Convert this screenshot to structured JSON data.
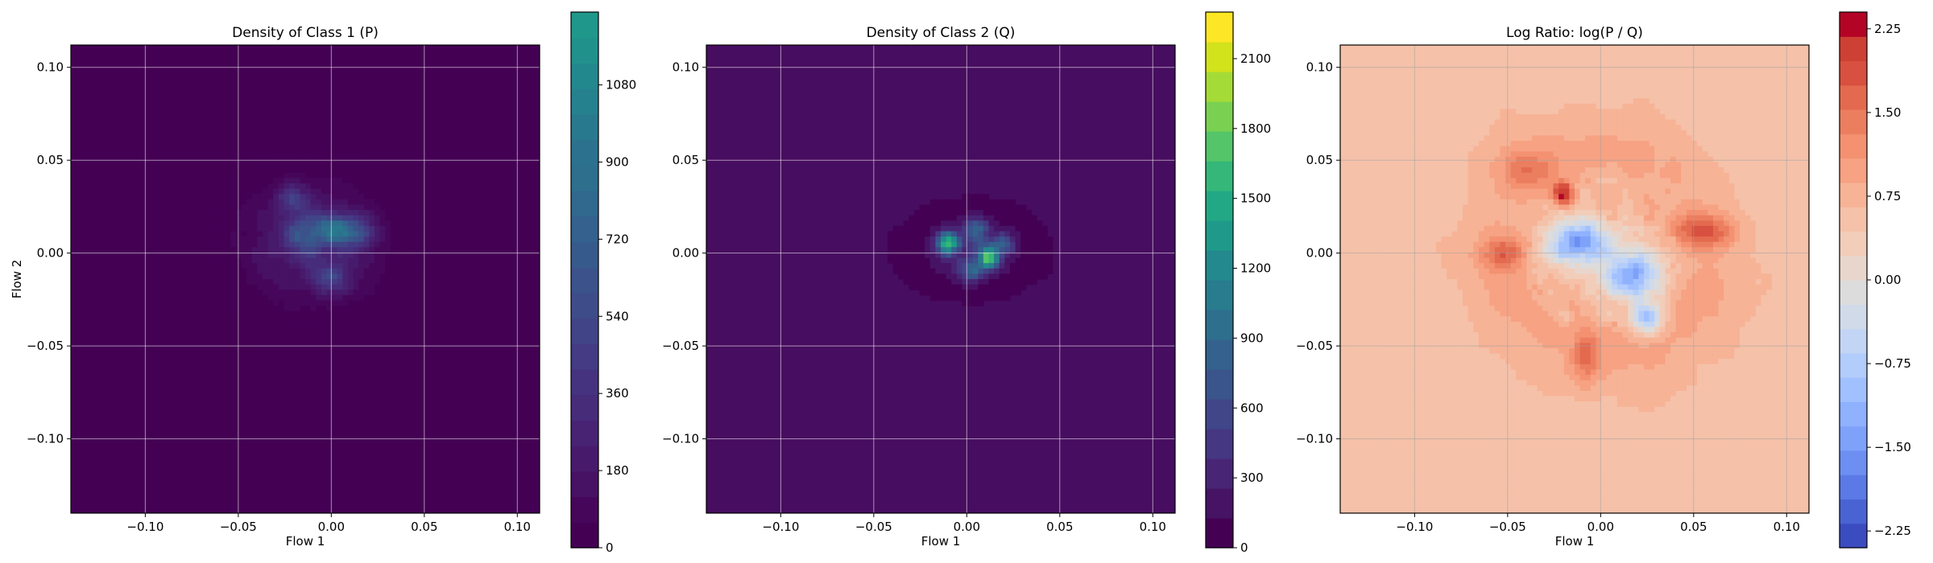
{
  "chart_data": [
    {
      "type": "heatmap",
      "title": "Density of Class 1 (P)",
      "xlabel": "Flow 1",
      "ylabel": "Flow 2",
      "xlim": [
        -0.14,
        0.112
      ],
      "ylim": [
        -0.14,
        0.112
      ],
      "xticks": [
        -0.1,
        -0.05,
        0.0,
        0.05,
        0.1
      ],
      "yticks": [
        -0.1,
        -0.05,
        0.0,
        0.05,
        0.1
      ],
      "xtick_labels": [
        "−0.10",
        "−0.05",
        "0.00",
        "0.05",
        "0.10"
      ],
      "ytick_labels": [
        "−0.10",
        "−0.05",
        "0.00",
        "0.05",
        "0.10"
      ],
      "grid": true,
      "colormap": "viridis",
      "background_color": "#440154",
      "colorbar": {
        "range": [
          0,
          1250
        ],
        "ticks": [
          0,
          180,
          360,
          540,
          720,
          900,
          1080
        ],
        "tick_labels": [
          "0",
          "180",
          "360",
          "540",
          "720",
          "900",
          "1080"
        ],
        "levels": 21,
        "colors": [
          "#440154",
          "#46075a",
          "#471164",
          "#481a6c",
          "#482374",
          "#472c7a",
          "#46337f",
          "#443b84",
          "#414487",
          "#3e4c8a",
          "#3b528b",
          "#375a8c",
          "#34618d",
          "#31688e",
          "#2e6f8e",
          "#2c728e",
          "#29798e",
          "#26818e",
          "#23888e",
          "#21918c",
          "#1f988b"
        ]
      },
      "density_blobs": [
        {
          "x": -0.01,
          "y": 0.005,
          "sx": 0.024,
          "sy": 0.02,
          "peak": 300
        },
        {
          "x": 0.0,
          "y": 0.012,
          "sx": 0.006,
          "sy": 0.005,
          "peak": 650
        },
        {
          "x": -0.02,
          "y": 0.03,
          "sx": 0.006,
          "sy": 0.005,
          "peak": 380
        },
        {
          "x": 0.012,
          "y": 0.01,
          "sx": 0.007,
          "sy": 0.006,
          "peak": 420
        },
        {
          "x": -0.015,
          "y": 0.01,
          "sx": 0.006,
          "sy": 0.006,
          "peak": 360
        },
        {
          "x": 0.0,
          "y": -0.015,
          "sx": 0.006,
          "sy": 0.005,
          "peak": 380
        }
      ]
    },
    {
      "type": "heatmap",
      "title": "Density of Class 2 (Q)",
      "xlabel": "Flow 1",
      "xlim": [
        -0.14,
        0.112
      ],
      "ylim": [
        -0.14,
        0.112
      ],
      "xticks": [
        -0.1,
        -0.05,
        0.0,
        0.05,
        0.1
      ],
      "yticks": [
        -0.1,
        -0.05,
        0.0,
        0.05,
        0.1
      ],
      "xtick_labels": [
        "−0.10",
        "−0.05",
        "0.00",
        "0.05",
        "0.10"
      ],
      "ytick_labels": [
        "−0.10",
        "−0.05",
        "0.00",
        "0.05",
        "0.10"
      ],
      "grid": true,
      "colormap": "viridis",
      "background_color": "#470d60",
      "colorbar": {
        "range": [
          0,
          2300
        ],
        "ticks": [
          0,
          300,
          600,
          900,
          1200,
          1500,
          1800,
          2100
        ],
        "tick_labels": [
          "0",
          "300",
          "600",
          "900",
          "1200",
          "1500",
          "1800",
          "2100"
        ],
        "levels": 15,
        "colors": [
          "#440154",
          "#471365",
          "#482575",
          "#453781",
          "#404688",
          "#3a548c",
          "#34618d",
          "#2e6f8e",
          "#297b8e",
          "#23898e",
          "#1f9a8a",
          "#22a884",
          "#35b779",
          "#54c568",
          "#7ad151",
          "#a5db36",
          "#d2e21b",
          "#fde725"
        ]
      },
      "density_blobs": [
        {
          "x": 0.002,
          "y": 0.002,
          "sx": 0.017,
          "sy": 0.011,
          "peak": 400
        },
        {
          "x": -0.01,
          "y": 0.005,
          "sx": 0.004,
          "sy": 0.004,
          "peak": 1500
        },
        {
          "x": 0.005,
          "y": 0.012,
          "sx": 0.004,
          "sy": 0.004,
          "peak": 1000
        },
        {
          "x": 0.012,
          "y": -0.003,
          "sx": 0.004,
          "sy": 0.004,
          "peak": 1100
        },
        {
          "x": 0.002,
          "y": -0.01,
          "sx": 0.004,
          "sy": 0.004,
          "peak": 800
        },
        {
          "x": 0.02,
          "y": 0.005,
          "sx": 0.004,
          "sy": 0.004,
          "peak": 700
        }
      ]
    },
    {
      "type": "heatmap",
      "title": "Log Ratio: log(P / Q)",
      "xlabel": "Flow 1",
      "xlim": [
        -0.14,
        0.112
      ],
      "ylim": [
        -0.14,
        0.112
      ],
      "xticks": [
        -0.1,
        -0.05,
        0.0,
        0.05,
        0.1
      ],
      "yticks": [
        -0.1,
        -0.05,
        0.0,
        0.05,
        0.1
      ],
      "xtick_labels": [
        "−0.10",
        "−0.05",
        "0.00",
        "0.05",
        "0.10"
      ],
      "ytick_labels": [
        "−0.10",
        "−0.05",
        "0.00",
        "0.05",
        "0.10"
      ],
      "grid": true,
      "colormap": "coolwarm",
      "background_color": "#efcbb5",
      "colorbar": {
        "range": [
          -2.4,
          2.4
        ],
        "ticks": [
          -2.25,
          -1.5,
          -0.75,
          0.0,
          0.75,
          1.5,
          2.25
        ],
        "tick_labels": [
          "−2.25",
          "−1.50",
          "−0.75",
          "0.00",
          "0.75",
          "1.50",
          "2.25"
        ],
        "levels": 21,
        "colors": [
          "#3b4cc0",
          "#4a63d3",
          "#5b7ae5",
          "#6c8ff1",
          "#7ea1fa",
          "#8fb1fe",
          "#a1c0ff",
          "#b2ccfb",
          "#c3d5f4",
          "#d1dae9",
          "#dddcdc",
          "#e8d6cc",
          "#f1cdba",
          "#f5c1a9",
          "#f7b396",
          "#f6a283",
          "#f39171",
          "#ec7e60",
          "#e46a4f",
          "#d85040",
          "#cd4134",
          "#b40426"
        ]
      },
      "ratio_features": [
        {
          "x": -0.012,
          "y": 0.006,
          "sx": 0.012,
          "sy": 0.008,
          "value": -1.5
        },
        {
          "x": 0.018,
          "y": -0.012,
          "sx": 0.011,
          "sy": 0.009,
          "value": -1.4
        },
        {
          "x": 0.025,
          "y": -0.035,
          "sx": 0.006,
          "sy": 0.006,
          "value": -1.2
        },
        {
          "x": -0.02,
          "y": 0.032,
          "sx": 0.004,
          "sy": 0.004,
          "value": 2.3
        },
        {
          "x": 0.055,
          "y": 0.012,
          "sx": 0.012,
          "sy": 0.006,
          "value": 1.6
        },
        {
          "x": -0.052,
          "y": 0.0,
          "sx": 0.008,
          "sy": 0.006,
          "value": 1.4
        },
        {
          "x": -0.04,
          "y": 0.045,
          "sx": 0.01,
          "sy": 0.008,
          "value": 1.2
        },
        {
          "x": -0.008,
          "y": -0.055,
          "sx": 0.005,
          "sy": 0.01,
          "value": 1.3
        }
      ]
    }
  ]
}
